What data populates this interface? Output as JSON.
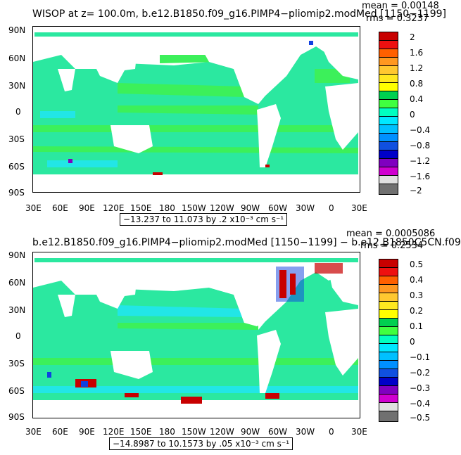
{
  "panels": [
    {
      "title": "WISOP at z= 100.0m, b.e12.B1850.f09_g16.PIMP4−pliomip2.modMed [1150−1199]",
      "mean": "mean = 0.00148",
      "rms": "rms = 0.3237",
      "range": "−13.237 to 11.073 by .2 x10⁻³ cm s⁻¹",
      "lat_ticks": [
        "90N",
        "60N",
        "30N",
        "0",
        "30S",
        "60S",
        "90S"
      ],
      "lon_ticks": [
        "30E",
        "60E",
        "90E",
        "120E",
        "150E",
        "180",
        "150W",
        "120W",
        "90W",
        "60W",
        "30W",
        "0",
        "30E"
      ],
      "colorbar_labels": [
        "2",
        "1.6",
        "1.2",
        "0.8",
        "0.4",
        "0",
        "−0.4",
        "−0.8",
        "−1.2",
        "−1.6",
        "−2"
      ],
      "colorbar_colors": [
        "#c80000",
        "#ee1010",
        "#ff6000",
        "#ff9820",
        "#ffc830",
        "#ffff00",
        "#00d050",
        "#40ff40",
        "#00ffc0",
        "#00e8ff",
        "#00c0ff",
        "#0090ff",
        "#1050e0",
        "#0000c8",
        "#8000c0",
        "#d000d0",
        "#e0e0e0",
        "#707070"
      ]
    },
    {
      "title": "b.e12.B1850.f09_g16.PIMP4−pliomip2.modMed [1150−1199] − b.e12.B1850C5CN.f09",
      "mean": "mean = 0.0005086",
      "rms": "rms = 0.2534",
      "range": "−14.8987 to 10.1573 by .05 x10⁻³ cm s⁻¹",
      "lat_ticks": [
        "90N",
        "60N",
        "30N",
        "0",
        "30S",
        "60S",
        "90S"
      ],
      "lon_ticks": [
        "30E",
        "60E",
        "90E",
        "120E",
        "150E",
        "180",
        "150W",
        "120W",
        "90W",
        "60W",
        "30W",
        "0",
        "30E"
      ],
      "colorbar_labels": [
        "0.5",
        "0.4",
        "0.3",
        "0.2",
        "0.1",
        "0",
        "−0.1",
        "−0.2",
        "−0.3",
        "−0.4",
        "−0.5"
      ],
      "colorbar_colors": [
        "#c80000",
        "#ee1010",
        "#ff6000",
        "#ff9820",
        "#ffc830",
        "#ffff00",
        "#00d050",
        "#40ff40",
        "#00ffc0",
        "#00e8ff",
        "#00c0ff",
        "#0090ff",
        "#1050e0",
        "#0000c8",
        "#8000c0",
        "#d000d0",
        "#e0e0e0",
        "#707070"
      ]
    }
  ],
  "colors": {
    "ocean_main": "#2be8a0",
    "ocean_alt": "#3cf05a",
    "ocean_cyan": "#22e6e6",
    "land": "#ffffff",
    "red": "#c80000",
    "blue": "#1040e0"
  }
}
